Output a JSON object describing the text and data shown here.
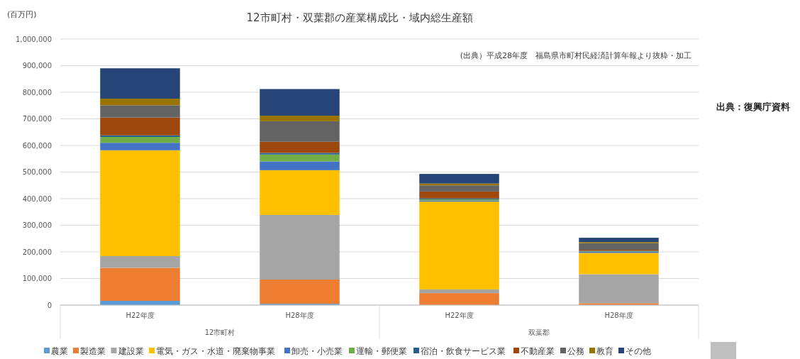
{
  "chart_data": {
    "type": "bar",
    "title": "12市町村・双葉郡の産業構成比・域内総生産額",
    "ylabel": "(百万円)",
    "stacked": true,
    "grid": "y",
    "legend": "bottom",
    "categories": [
      "H22年度",
      "H28年度",
      "H22年度",
      "H28年度"
    ],
    "annotations": [
      "12市町村",
      "双葉郡",
      "(出典）平成28年度　福島県市町村民経済計算年報より抜粋・加工",
      "出典：復興庁資料"
    ],
    "ylim": [
      0,
      1000000
    ],
    "yticks": [
      {
        "value": 0,
        "label": "0"
      },
      {
        "value": 100000,
        "label": "100,000"
      },
      {
        "value": 200000,
        "label": "200,000"
      },
      {
        "value": 300000,
        "label": "300,000"
      },
      {
        "value": 400000,
        "label": "400,000"
      },
      {
        "value": 500000,
        "label": "500,000"
      },
      {
        "value": 600000,
        "label": "600,000"
      },
      {
        "value": 700000,
        "label": "700,000"
      },
      {
        "value": 800000,
        "label": "800,000"
      },
      {
        "value": 900000,
        "label": "900,000"
      },
      {
        "value": 1000000,
        "label": "1,000,000"
      }
    ],
    "series": [
      {
        "name": "農業",
        "color": "#5b9bd5",
        "values": [
          16000,
          5000,
          null,
          null
        ]
      },
      {
        "name": "製造業",
        "color": "#ed7d31",
        "values": [
          124000,
          91000,
          45000,
          7000
        ]
      },
      {
        "name": "建設業",
        "color": "#a5a5a5",
        "values": [
          44000,
          243000,
          14000,
          109000
        ]
      },
      {
        "name": "電気・ガス・水道・廃棄物事業",
        "color": "#ffc000",
        "values": [
          398000,
          168000,
          330000,
          80000
        ]
      },
      {
        "name": "卸売・小売業",
        "color": "#4472c4",
        "values": [
          28000,
          33000,
          4000,
          4000
        ]
      },
      {
        "name": "運輸・郵便業",
        "color": "#70ad47",
        "values": [
          22000,
          26000,
          4000,
          2000
        ]
      },
      {
        "name": "宿泊・飲食サービス業",
        "color": "#255e91",
        "values": [
          6000,
          6000,
          4000,
          2000
        ]
      },
      {
        "name": "不動産業",
        "color": "#9e480e",
        "values": [
          67000,
          42000,
          26000,
          4000
        ]
      },
      {
        "name": "公務",
        "color": "#636363",
        "values": [
          46000,
          77000,
          23000,
          25000
        ]
      },
      {
        "name": "教育",
        "color": "#997300",
        "values": [
          25000,
          21000,
          7000,
          4000
        ]
      },
      {
        "name": "その他",
        "color": "#264478",
        "values": [
          114000,
          100000,
          36000,
          16000
        ]
      }
    ]
  }
}
